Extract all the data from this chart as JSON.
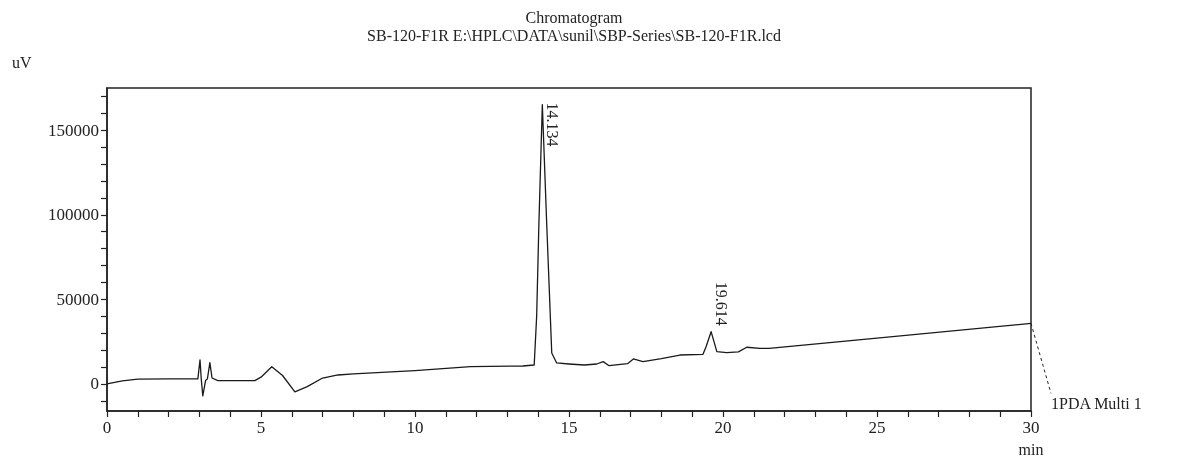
{
  "chart_data": {
    "type": "line",
    "title": "Chromatogram",
    "subtitle": "SB-120-F1R E:\\HPLC\\DATA\\sunil\\SBP-Series\\SB-120-F1R.lcd",
    "xlabel": "min",
    "ylabel": "uV",
    "series": [
      {
        "name": "1PDA Multi 1",
        "color": "#1a1a1a",
        "x": [
          0,
          0.5,
          1,
          2,
          2.95,
          3.02,
          3.06,
          3.11,
          3.2,
          3.26,
          3.34,
          3.41,
          3.6,
          4.8,
          5.0,
          5.35,
          5.7,
          6.1,
          6.5,
          7.0,
          7.5,
          8,
          10,
          11.8,
          13.5,
          13.87,
          13.95,
          14.02,
          14.134,
          14.28,
          14.44,
          14.6,
          15,
          15.5,
          15.9,
          16.11,
          16.3,
          16.9,
          17.09,
          17.4,
          18,
          18.6,
          19.35,
          19.45,
          19.614,
          19.8,
          20.12,
          20.5,
          20.77,
          21.2,
          21.5,
          25,
          30
        ],
        "values": [
          0,
          1800,
          2900,
          3000,
          3000,
          14200,
          3000,
          -7000,
          2000,
          3000,
          12600,
          3500,
          2000,
          2000,
          4000,
          10200,
          5000,
          -4700,
          -1600,
          3500,
          5300,
          6000,
          7900,
          10200,
          10600,
          11200,
          40000,
          92900,
          165200,
          92900,
          18300,
          12400,
          11800,
          11200,
          11800,
          13200,
          10800,
          12000,
          14800,
          13200,
          15000,
          17100,
          17500,
          22000,
          30900,
          19100,
          18500,
          19000,
          21700,
          21000,
          21000,
          27100,
          35800
        ]
      }
    ],
    "xlim": [
      0,
      30
    ],
    "ylim": [
      -16000,
      175000
    ],
    "xticks": [
      0,
      {
        "value": 1,
        "label": null
      },
      {
        "value": 2,
        "label": null
      },
      {
        "value": 3,
        "label": null
      },
      {
        "value": 4,
        "label": null
      },
      5,
      {
        "value": 6,
        "label": null
      },
      {
        "value": 7,
        "label": null
      },
      {
        "value": 8,
        "label": null
      },
      {
        "value": 9,
        "label": null
      },
      10,
      {
        "value": 11,
        "label": null
      },
      {
        "value": 12,
        "label": null
      },
      {
        "value": 13,
        "label": null
      },
      {
        "value": 14,
        "label": null
      },
      15,
      {
        "value": 16,
        "label": null
      },
      {
        "value": 17,
        "label": null
      },
      {
        "value": 18,
        "label": null
      },
      {
        "value": 19,
        "label": null
      },
      20,
      {
        "value": 21,
        "label": null
      },
      {
        "value": 22,
        "label": null
      },
      {
        "value": 23,
        "label": null
      },
      {
        "value": 24,
        "label": null
      },
      25,
      {
        "value": 26,
        "label": null
      },
      {
        "value": 27,
        "label": null
      },
      {
        "value": 28,
        "label": null
      },
      {
        "value": 29,
        "label": null
      },
      30
    ],
    "yticks": [
      {
        "value": -10000,
        "label": null
      },
      0,
      {
        "value": 10000,
        "label": null
      },
      {
        "value": 20000,
        "label": null
      },
      {
        "value": 30000,
        "label": null
      },
      {
        "value": 40000,
        "label": null
      },
      50000,
      {
        "value": 60000,
        "label": null
      },
      {
        "value": 70000,
        "label": null
      },
      {
        "value": 80000,
        "label": null
      },
      {
        "value": 90000,
        "label": null
      },
      100000,
      {
        "value": 110000,
        "label": null
      },
      {
        "value": 120000,
        "label": null
      },
      {
        "value": 130000,
        "label": null
      },
      {
        "value": 140000,
        "label": null
      },
      150000,
      {
        "value": 160000,
        "label": null
      },
      {
        "value": 170000,
        "label": null
      }
    ],
    "annotations": [
      {
        "text": "14.134",
        "x": 14.134,
        "y": 165200
      },
      {
        "text": "19.614",
        "x": 19.614,
        "y": 30900
      }
    ],
    "grid": false,
    "legend": false,
    "marker": "none",
    "line_style": "solid"
  }
}
